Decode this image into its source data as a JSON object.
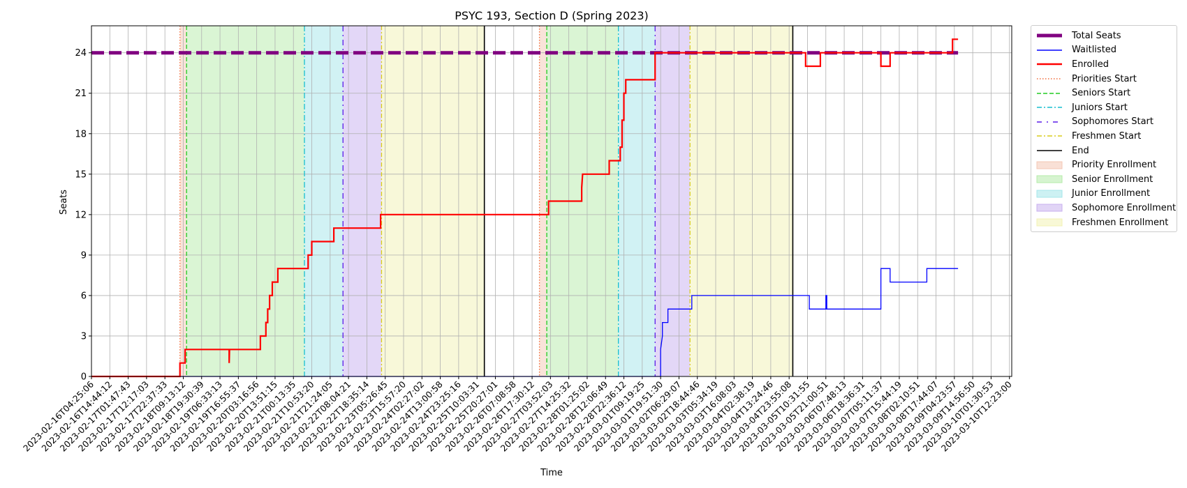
{
  "chart_data": {
    "type": "line",
    "title": "PSYC 193, Section D (Spring 2023)",
    "xlabel": "Time",
    "ylabel": "Seats",
    "ylim": [
      0,
      26
    ],
    "yticks": [
      0,
      3,
      6,
      9,
      12,
      15,
      18,
      21,
      24
    ],
    "xlim": [
      "2023-02-16T04:25:06",
      "2023-03-10T12:23:00"
    ],
    "xticks": [
      "2023-02-16T04:25:06",
      "2023-02-16T14:44:12",
      "2023-02-17T01:47:43",
      "2023-02-17T12:17:03",
      "2023-02-17T22:37:33",
      "2023-02-18T09:13:12",
      "2023-02-18T19:30:39",
      "2023-02-19T06:33:13",
      "2023-02-19T16:55:37",
      "2023-02-20T03:16:56",
      "2023-02-20T13:51:15",
      "2023-02-21T00:13:35",
      "2023-02-21T10:53:20",
      "2023-02-21T21:24:05",
      "2023-02-22T08:04:21",
      "2023-02-22T18:35:14",
      "2023-02-23T05:26:45",
      "2023-02-23T15:57:20",
      "2023-02-24T02:27:02",
      "2023-02-24T13:00:58",
      "2023-02-24T23:25:16",
      "2023-02-25T10:03:31",
      "2023-02-25T20:27:01",
      "2023-02-26T07:08:58",
      "2023-02-26T17:30:12",
      "2023-02-27T03:52:03",
      "2023-02-27T14:25:32",
      "2023-02-28T01:25:02",
      "2023-02-28T12:06:49",
      "2023-02-28T22:36:12",
      "2023-03-01T09:19:25",
      "2023-03-01T19:51:30",
      "2023-03-02T06:29:07",
      "2023-03-02T18:44:46",
      "2023-03-03T05:34:19",
      "2023-03-03T16:08:03",
      "2023-03-04T02:38:19",
      "2023-03-04T13:24:46",
      "2023-03-04T23:55:08",
      "2023-03-05T10:31:55",
      "2023-03-05T21:00:51",
      "2023-03-06T07:48:13",
      "2023-03-06T18:36:31",
      "2023-03-07T05:11:37",
      "2023-03-07T15:44:19",
      "2023-03-08T02:10:51",
      "2023-03-08T17:44:07",
      "2023-03-09T04:23:57",
      "2023-03-09T14:56:50",
      "2023-03-10T01:30:53",
      "2023-03-10T12:23:00"
    ],
    "grid": true,
    "legend_position": "outside-right",
    "phases": [
      {
        "name": "Priority Enrollment",
        "color": "#f4c7b4",
        "start": 4.82,
        "end": 5.18
      },
      {
        "name": "Senior Enrollment",
        "color": "#b5ebaa",
        "start": 5.18,
        "end": 11.6
      },
      {
        "name": "Junior Enrollment",
        "color": "#a4e6e9",
        "start": 11.6,
        "end": 13.7
      },
      {
        "name": "Sophomore Enrollment",
        "color": "#c8b0ef",
        "start": 13.7,
        "end": 15.8
      },
      {
        "name": "Freshmen Enrollment",
        "color": "#f2f2b4",
        "start": 15.8,
        "end": 21.4
      },
      {
        "name": "Priority Enrollment",
        "color": "#f4c7b4",
        "start": 24.4,
        "end": 24.8
      },
      {
        "name": "Senior Enrollment",
        "color": "#b5ebaa",
        "start": 24.8,
        "end": 28.7
      },
      {
        "name": "Junior Enrollment",
        "color": "#a4e6e9",
        "start": 28.7,
        "end": 30.7
      },
      {
        "name": "Sophomore Enrollment",
        "color": "#c8b0ef",
        "start": 30.7,
        "end": 32.6
      },
      {
        "name": "Freshmen Enrollment",
        "color": "#f2f2b4",
        "start": 32.6,
        "end": 38.2
      }
    ],
    "markers": [
      {
        "series": "Priorities Start",
        "x": [
          4.82,
          24.4
        ]
      },
      {
        "series": "Seniors Start",
        "x": [
          5.18,
          24.8
        ]
      },
      {
        "series": "Juniors Start",
        "x": [
          11.6,
          28.7
        ]
      },
      {
        "series": "Sophomores Start",
        "x": [
          13.7,
          30.7
        ]
      },
      {
        "series": "Freshmen Start",
        "x": [
          15.8,
          32.6
        ]
      },
      {
        "series": "End",
        "x": [
          21.4,
          38.2
        ]
      }
    ],
    "series": [
      {
        "name": "Total Seats",
        "color": "#800080",
        "x": [
          0,
          47.2
        ],
        "y": [
          24,
          24
        ]
      },
      {
        "name": "Waitlisted",
        "color": "#0000ff",
        "x": [
          0,
          30.6,
          30.6,
          31.0,
          31.0,
          31.1,
          31.1,
          31.4,
          31.4,
          32.7,
          32.7,
          39.1,
          39.1,
          40.0,
          40.0,
          40.05,
          40.05,
          43.0,
          43.0,
          43.5,
          43.5,
          45.5,
          45.5,
          47.2
        ],
        "y": [
          0,
          0,
          0,
          0,
          2,
          3,
          4,
          4,
          5,
          5,
          6,
          6,
          5,
          5,
          6,
          6,
          5,
          5,
          8,
          8,
          7,
          7,
          8,
          8
        ]
      },
      {
        "name": "Enrolled",
        "color": "#ff0000",
        "x": [
          0,
          4.82,
          4.82,
          5.1,
          5.1,
          5.4,
          5.4,
          7.5,
          7.5,
          7.52,
          7.52,
          9.2,
          9.2,
          9.5,
          9.5,
          9.6,
          9.6,
          9.7,
          9.7,
          9.85,
          9.85,
          10.15,
          10.15,
          11.8,
          11.8,
          12.0,
          12.0,
          13.2,
          13.2,
          15.75,
          15.75,
          24.9,
          24.9,
          26.7,
          26.7,
          26.75,
          26.75,
          28.2,
          28.2,
          28.8,
          28.8,
          28.9,
          28.9,
          29.0,
          29.0,
          29.1,
          29.1,
          29.3,
          29.3,
          30.7,
          30.7,
          38.9,
          38.9,
          39.7,
          39.7,
          43.0,
          43.0,
          43.5,
          43.5,
          46.9,
          46.9,
          47.2
        ],
        "y": [
          0,
          0,
          1,
          1,
          2,
          2,
          2,
          2,
          1,
          2,
          2,
          2,
          3,
          3,
          4,
          4,
          5,
          5,
          6,
          6,
          7,
          7,
          8,
          8,
          9,
          9,
          10,
          10,
          11,
          11,
          12,
          12,
          13,
          13,
          14,
          15,
          15,
          15,
          16,
          16,
          17,
          17,
          19,
          19,
          21,
          21,
          22,
          22,
          22,
          22,
          24,
          24,
          23,
          23,
          24,
          24,
          23,
          23,
          24,
          24,
          25,
          25
        ]
      }
    ]
  },
  "legend": [
    {
      "label": "Total Seats",
      "kind": "thickdash",
      "color": "#800080"
    },
    {
      "label": "Waitlisted",
      "kind": "line",
      "color": "#0000ff"
    },
    {
      "label": "Enrolled",
      "kind": "thickline",
      "color": "#ff0000"
    },
    {
      "label": "Priorities Start",
      "kind": "dotted",
      "color": "#f26b3a"
    },
    {
      "label": "Seniors Start",
      "kind": "dashed",
      "color": "#22cc22"
    },
    {
      "label": "Juniors Start",
      "kind": "dashdot",
      "color": "#17becf"
    },
    {
      "label": "Sophomores Start",
      "kind": "dashdotsparse",
      "color": "#5a1ae8"
    },
    {
      "label": "Freshmen Start",
      "kind": "dashdot",
      "color": "#d9cc1a"
    },
    {
      "label": "End",
      "kind": "line",
      "color": "#000000"
    },
    {
      "label": "Priority Enrollment",
      "kind": "patch",
      "color": "#f4c7b4"
    },
    {
      "label": "Senior Enrollment",
      "kind": "patch",
      "color": "#b5ebaa"
    },
    {
      "label": "Junior Enrollment",
      "kind": "patch",
      "color": "#a4e6e9"
    },
    {
      "label": "Sophomore Enrollment",
      "kind": "patch",
      "color": "#c8b0ef"
    },
    {
      "label": "Freshmen Enrollment",
      "kind": "patch",
      "color": "#f2f2b4"
    }
  ]
}
